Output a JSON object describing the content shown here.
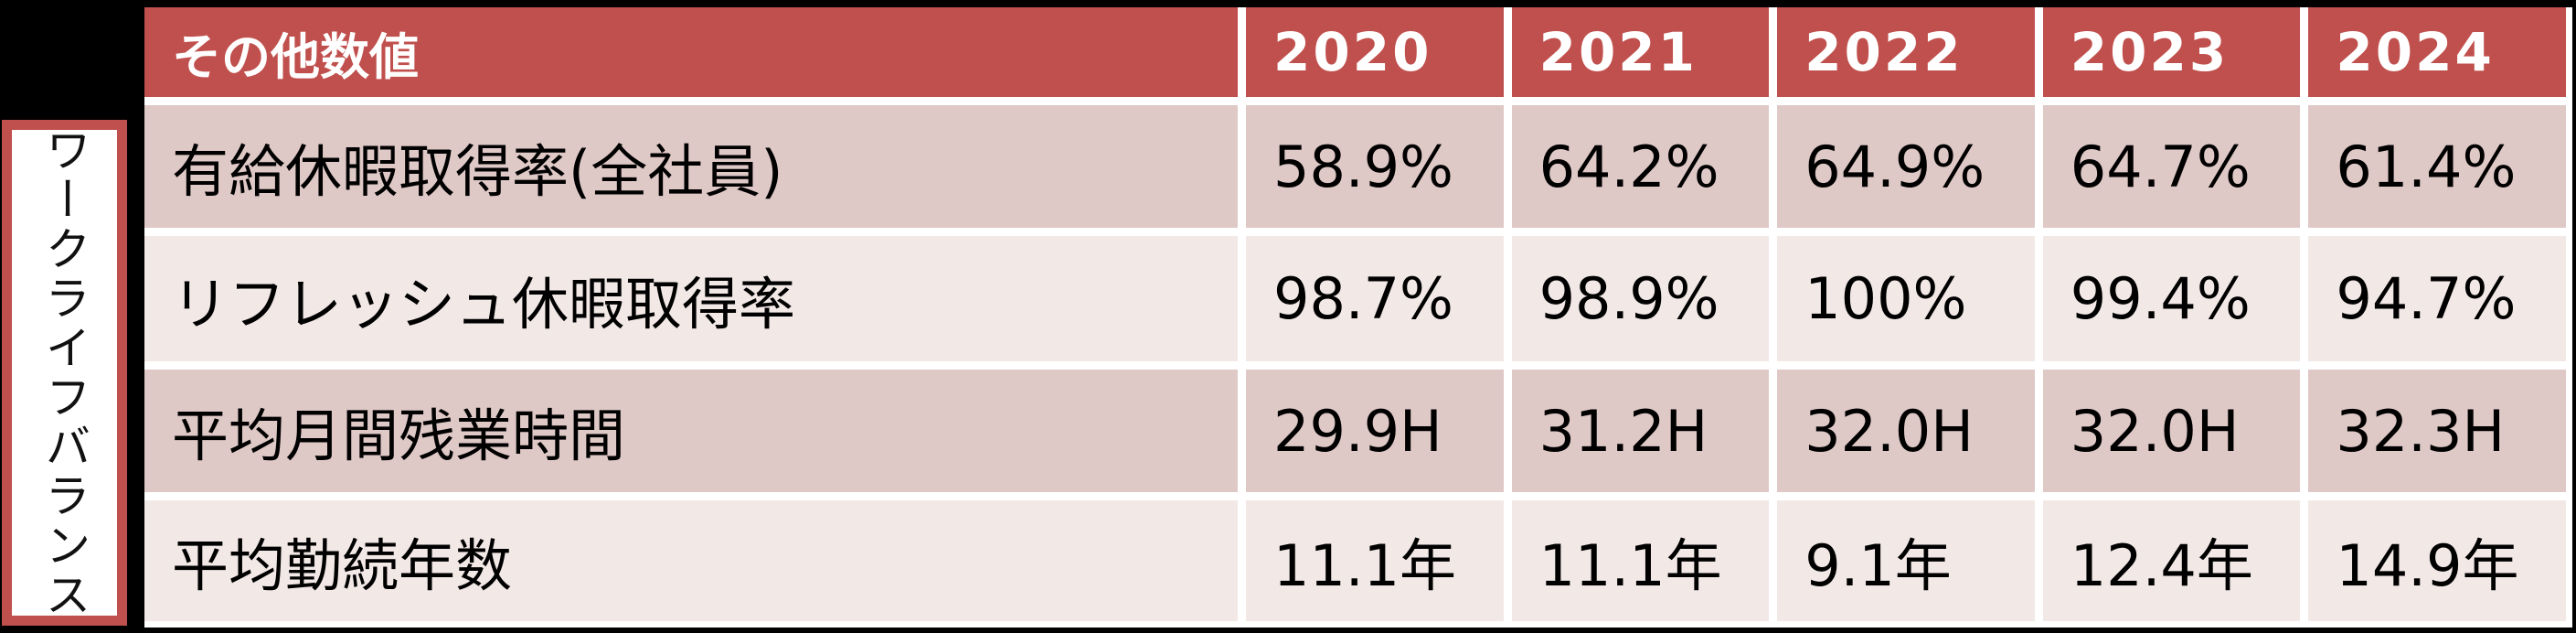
{
  "page": {
    "background_color": "#000000",
    "gutter_color": "#FFFFFF"
  },
  "side_label": {
    "text": "ワークライフバランス",
    "border_color": "#C0504D",
    "background_color": "#FFFFFF",
    "text_color": "#111111"
  },
  "table": {
    "header": {
      "title": "その他数値",
      "years": [
        "2020",
        "2021",
        "2022",
        "2023",
        "2024"
      ],
      "background_color": "#C0504D",
      "text_color": "#FFFFFF"
    },
    "band_colors": {
      "odd": "#DFC9C7",
      "even": "#F2E9E7"
    },
    "body_text_color": "#000000",
    "rows": [
      {
        "label": "有給休暇取得率(全社員)",
        "values": [
          "58.9%",
          "64.2%",
          "64.9%",
          "64.7%",
          "61.4%"
        ]
      },
      {
        "label": "リフレッシュ休暇取得率",
        "values": [
          "98.7%",
          "98.9%",
          "100%",
          "99.4%",
          "94.7%"
        ]
      },
      {
        "label": "平均月間残業時間",
        "values": [
          "29.9H",
          "31.2H",
          "32.0H",
          "32.0H",
          "32.3H"
        ]
      },
      {
        "label": "平均勤続年数",
        "values": [
          "11.1年",
          "11.1年",
          "9.1年",
          "12.4年",
          "14.9年"
        ]
      }
    ]
  },
  "chart_data": {
    "type": "table",
    "title": "その他数値",
    "row_group_label": "ワークライフバランス",
    "columns": [
      "2020",
      "2021",
      "2022",
      "2023",
      "2024"
    ],
    "rows": [
      {
        "metric": "有給休暇取得率(全社員)",
        "unit": "%",
        "values": [
          58.9,
          64.2,
          64.9,
          64.7,
          61.4
        ]
      },
      {
        "metric": "リフレッシュ休暇取得率",
        "unit": "%",
        "values": [
          98.7,
          98.9,
          100,
          99.4,
          94.7
        ]
      },
      {
        "metric": "平均月間残業時間",
        "unit": "H",
        "values": [
          29.9,
          31.2,
          32.0,
          32.0,
          32.3
        ]
      },
      {
        "metric": "平均勤続年数",
        "unit": "年",
        "values": [
          11.1,
          11.1,
          9.1,
          12.4,
          14.9
        ]
      }
    ]
  }
}
